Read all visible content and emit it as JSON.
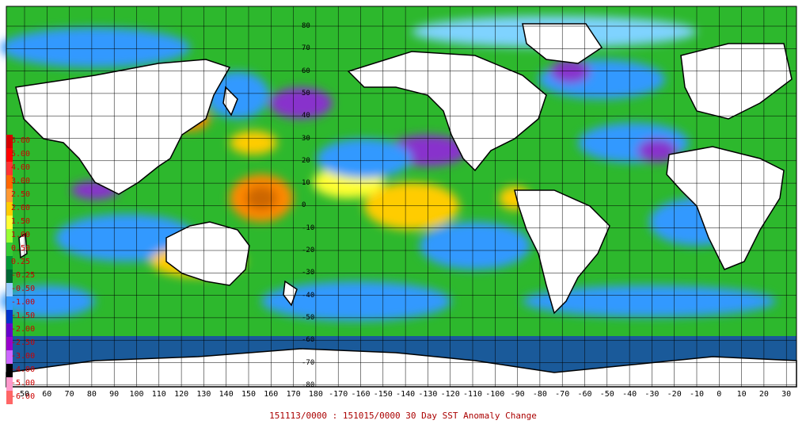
{
  "caption": "151113/0000 : 151015/0000 30 Day SST Anomaly Change",
  "legend": {
    "labels": [
      "6.00",
      "5.00",
      "4.00",
      "3.00",
      "2.50",
      "2.00",
      "1.50",
      "1.00",
      "0.50",
      "0.25",
      "-0.25",
      "-0.50",
      "-1.00",
      "-1.50",
      "-2.00",
      "-2.50",
      "-3.00",
      "-4.00",
      "-5.00",
      "-6.00"
    ],
    "colors": [
      "#d40000",
      "#ff0000",
      "#ff3333",
      "#ff6600",
      "#ff9933",
      "#ffcc00",
      "#ffff33",
      "#99ff33",
      "#33cc33",
      "#009933",
      "#006633",
      "#99ccff",
      "#3399ff",
      "#0033cc",
      "#6600cc",
      "#9900cc",
      "#cc66ff",
      "#000000",
      "#ff99cc",
      "#ff6666"
    ]
  },
  "longitude_labels": [
    "50",
    "60",
    "70",
    "80",
    "90",
    "100",
    "110",
    "120",
    "130",
    "140",
    "150",
    "160",
    "170",
    "180",
    "-170",
    "-160",
    "-150",
    "-140",
    "-130",
    "-120",
    "-110",
    "-100",
    "-90",
    "-80",
    "-70",
    "-60",
    "-50",
    "-40",
    "-30",
    "-20",
    "-10",
    "0",
    "10",
    "20",
    "30"
  ],
  "latitude_labels": [
    "80",
    "70",
    "60",
    "50",
    "40",
    "30",
    "20",
    "10",
    "0",
    "-10",
    "-20",
    "-30",
    "-40",
    "-50",
    "-60",
    "-70",
    "-80"
  ],
  "colors": {
    "ocean_base": "#33cc33",
    "cold": "#3399ff",
    "very_cold": "#9933cc",
    "warm": "#ffcc00",
    "hot": "#ff8800",
    "ice": "#1a5a9a",
    "land": "#ffffff",
    "coast": "#000000",
    "grid": "#000000"
  }
}
